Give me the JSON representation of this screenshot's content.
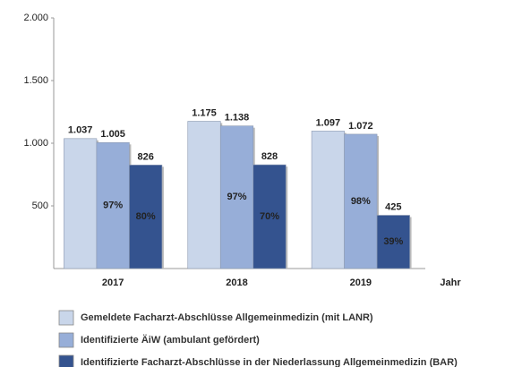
{
  "chart_data": {
    "type": "bar",
    "categories": [
      "2017",
      "2018",
      "2019"
    ],
    "x_label": "Jahr",
    "series": [
      {
        "name": "Gemeldete Facharzt-Abschlüsse Allgemeinmedizin (mit LANR)",
        "color": "#c9d6ea",
        "values": [
          1037,
          1175,
          1097
        ],
        "value_labels": [
          "1.037",
          "1.175",
          "1.097"
        ]
      },
      {
        "name": "Identifizierte ÄiW (ambulant gefördert)",
        "color": "#97aed8",
        "values": [
          1005,
          1138,
          1072
        ],
        "value_labels": [
          "1.005",
          "1.138",
          "1.072"
        ],
        "percent_labels": [
          "97%",
          "97%",
          "98%"
        ]
      },
      {
        "name": "Identifizierte Facharzt-Abschlüsse in der Niederlassung Allgemeinmedizin (BAR)",
        "color": "#34538f",
        "values": [
          826,
          828,
          425
        ],
        "percent_labels": [
          "80%",
          "70%",
          "39%"
        ]
      }
    ],
    "ylim": [
      0,
      2000
    ],
    "yticks": [
      {
        "value": 500,
        "label": "500"
      },
      {
        "value": 1000,
        "label": "1.000"
      },
      {
        "value": 1500,
        "label": "1.500"
      },
      {
        "value": 2000,
        "label": "2.000"
      }
    ],
    "grid": false,
    "legend": "bottom"
  }
}
